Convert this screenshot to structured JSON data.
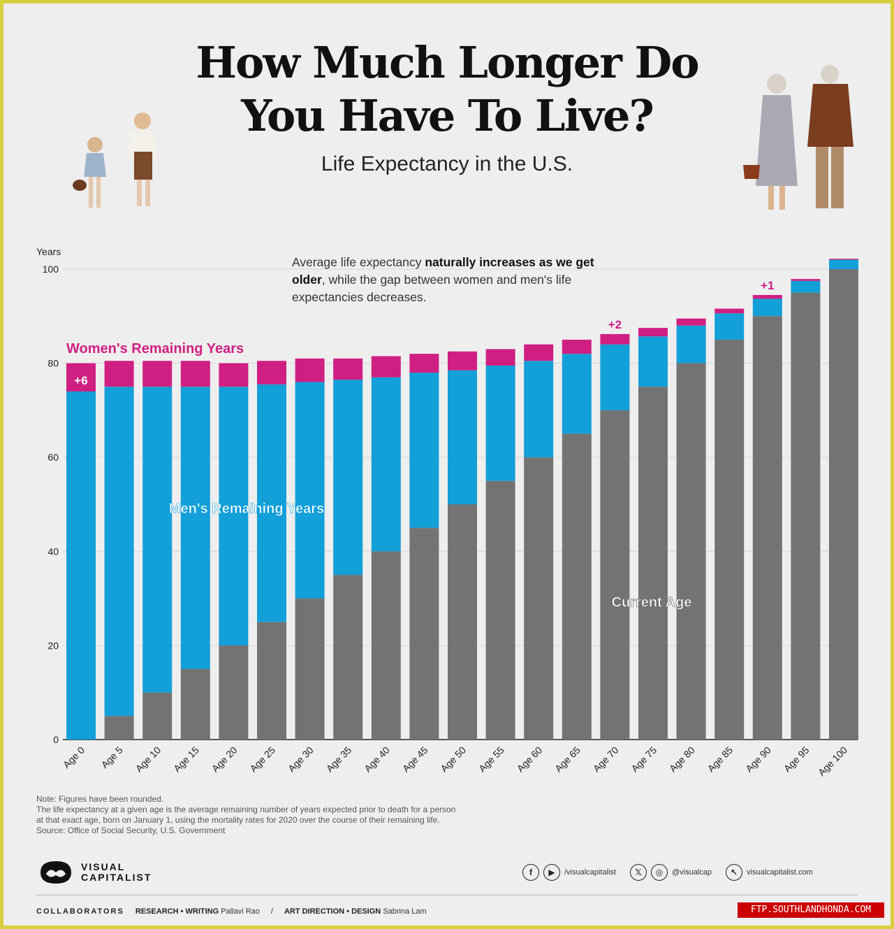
{
  "header": {
    "title_line1": "How Much Longer Do",
    "title_line2": "You Have To Live?",
    "subtitle": "Life Expectancy in the U.S."
  },
  "annotation": {
    "part1": "Average life expectancy ",
    "bold": "naturally increases as we get older",
    "part2": ", while the gap between women and men's life expectancies decreases."
  },
  "colors": {
    "current_age": "#737373",
    "men": "#139fd8",
    "women": "#cf1f83",
    "frame": "#d8cf3e",
    "background": "#eeeeee"
  },
  "chart_data": {
    "type": "bar",
    "stacked": true,
    "ylabel": "Years",
    "ylim": [
      0,
      102
    ],
    "yticks": [
      0,
      20,
      40,
      60,
      80,
      100
    ],
    "categories": [
      "Age 0",
      "Age 5",
      "Age 10",
      "Age 15",
      "Age 20",
      "Age 25",
      "Age 30",
      "Age 35",
      "Age 40",
      "Age 45",
      "Age 50",
      "Age 55",
      "Age 60",
      "Age 65",
      "Age 70",
      "Age 75",
      "Age 80",
      "Age 85",
      "Age 90",
      "Age 95",
      "Age 100"
    ],
    "series": [
      {
        "name": "Current Age",
        "color": "#737373",
        "values": [
          0,
          5,
          10,
          15,
          20,
          25,
          30,
          35,
          40,
          45,
          50,
          55,
          60,
          65,
          70,
          75,
          80,
          85,
          90,
          95,
          100
        ]
      },
      {
        "name": "Men's Remaining Years",
        "color": "#139fd8",
        "values": [
          74,
          70,
          65,
          60,
          55,
          50.5,
          46,
          41.5,
          37,
          33,
          28.5,
          24.5,
          20.5,
          17,
          14,
          10.7,
          8,
          5.6,
          3.7,
          2.5,
          2
        ]
      },
      {
        "name": "Women's Remaining Years",
        "color": "#cf1f83",
        "values": [
          6,
          5.5,
          5.5,
          5.5,
          5,
          5,
          5,
          4.5,
          4.5,
          4,
          4,
          3.5,
          3.5,
          3,
          2.2,
          1.8,
          1.5,
          1,
          0.8,
          0.4,
          0.2
        ]
      }
    ],
    "series_labels": {
      "women": "Women's Remaining Years",
      "men": "Men's Remaining Years",
      "current": "Current Age"
    },
    "gap_labels": [
      {
        "index": 0,
        "text": "+6"
      },
      {
        "index": 14,
        "text": "+2"
      },
      {
        "index": 18,
        "text": "+1"
      }
    ]
  },
  "notes": {
    "line1": "Note: Figures have been rounded.",
    "line2": "The life expectancy at a given age is the average remaining number of years expected prior to death for a person",
    "line3": "at that exact age, born on January 1, using the mortality rates for 2020 over the course of their remaining life.",
    "line4": "Source: Office of Social Security, U.S. Government"
  },
  "brand": {
    "name_line1": "VISUAL",
    "name_line2": "CAPITALIST"
  },
  "socials": {
    "handle1": "/visualcapitalist",
    "handle2": "@visualcap",
    "website": "visualcapitalist.com",
    "facebook_glyph": "f",
    "youtube_glyph": "▶",
    "x_glyph": "𝕏",
    "instagram_glyph": "◎",
    "web_glyph": "↖"
  },
  "collaborators": {
    "heading": "COLLABORATORS",
    "research_label": "RESEARCH • WRITING",
    "research_name": "Pallavi Rao",
    "separator": "/",
    "design_label": "ART DIRECTION • DESIGN",
    "design_name": "Sabrina Lam"
  },
  "watermark": "FTP.SOUTHLANDHONDA.COM"
}
